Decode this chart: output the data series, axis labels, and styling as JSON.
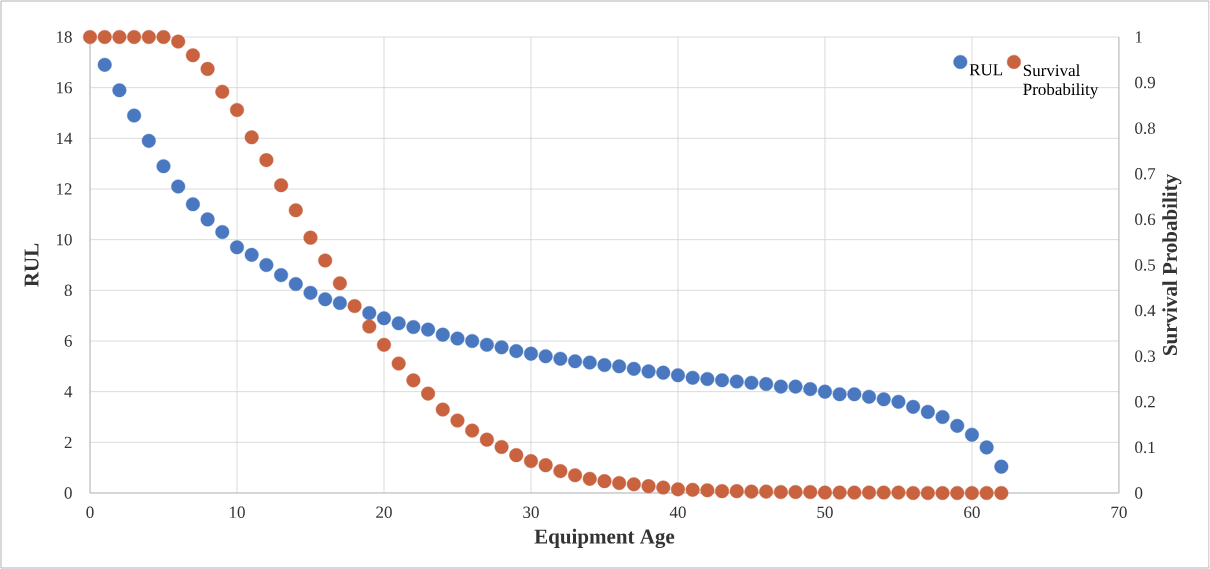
{
  "chart_data": {
    "type": "scatter",
    "xlabel": "Equipment Age",
    "ylabel": "RUL",
    "y2label": "Survival Probability",
    "x": [
      0,
      1,
      2,
      3,
      4,
      5,
      6,
      7,
      8,
      9,
      10,
      11,
      12,
      13,
      14,
      15,
      16,
      17,
      18,
      19,
      20,
      21,
      22,
      23,
      24,
      25,
      26,
      27,
      28,
      29,
      30,
      31,
      32,
      33,
      34,
      35,
      36,
      37,
      38,
      39,
      40,
      41,
      42,
      43,
      44,
      45,
      46,
      47,
      48,
      49,
      50,
      51,
      52,
      53,
      54,
      55,
      56,
      57,
      58,
      59,
      60,
      61,
      62
    ],
    "series": [
      {
        "name": "RUL",
        "color": "#4a78c0",
        "values": [
          null,
          16.9,
          15.9,
          14.9,
          13.9,
          12.9,
          12.1,
          11.4,
          10.8,
          10.3,
          9.7,
          9.4,
          9.0,
          8.6,
          8.25,
          7.9,
          7.65,
          7.5,
          null,
          7.1,
          6.9,
          6.7,
          6.55,
          6.45,
          6.25,
          6.1,
          6.0,
          5.85,
          5.75,
          5.6,
          5.5,
          5.4,
          5.3,
          5.2,
          5.15,
          5.05,
          5.0,
          4.9,
          4.8,
          4.75,
          4.65,
          4.55,
          4.5,
          4.45,
          4.4,
          4.35,
          4.3,
          4.2,
          4.2,
          4.1,
          4.0,
          3.9,
          3.9,
          3.8,
          3.7,
          3.6,
          3.4,
          3.2,
          3.0,
          2.65,
          2.3,
          1.8,
          1.04
        ]
      },
      {
        "name": "Survival Probability",
        "color": "#c8623f",
        "axis": "y2",
        "values": [
          1,
          1,
          1,
          1,
          1,
          1,
          0.99,
          0.96,
          0.93,
          0.88,
          0.84,
          0.78,
          0.73,
          0.675,
          0.62,
          0.56,
          0.51,
          0.46,
          0.41,
          0.365,
          0.325,
          0.284,
          0.247,
          0.218,
          0.183,
          0.159,
          0.137,
          0.117,
          0.101,
          0.083,
          0.07,
          0.061,
          0.048,
          0.039,
          0.031,
          0.026,
          0.022,
          0.019,
          0.015,
          0.012,
          0.008,
          0.007,
          0.006,
          0.004,
          0.004,
          0.003,
          0.003,
          0.002,
          0.002,
          0.002,
          0.001,
          0.001,
          0.001,
          0.001,
          0.001,
          0.001,
          0,
          0,
          0,
          0,
          0,
          0,
          0
        ]
      }
    ],
    "xlim": [
      0,
      70
    ],
    "xticks": [
      0,
      10,
      20,
      30,
      40,
      50,
      60,
      70
    ],
    "ylim": [
      0,
      18
    ],
    "yticks": [
      0,
      2,
      4,
      6,
      8,
      10,
      12,
      14,
      16,
      18
    ],
    "y2lim": [
      0,
      1
    ],
    "y2ticks": [
      0,
      0.1,
      0.2,
      0.3,
      0.4,
      0.5,
      0.6,
      0.7,
      0.8,
      0.9,
      1
    ],
    "grid": true,
    "legend": "top right",
    "marker": "circle"
  }
}
